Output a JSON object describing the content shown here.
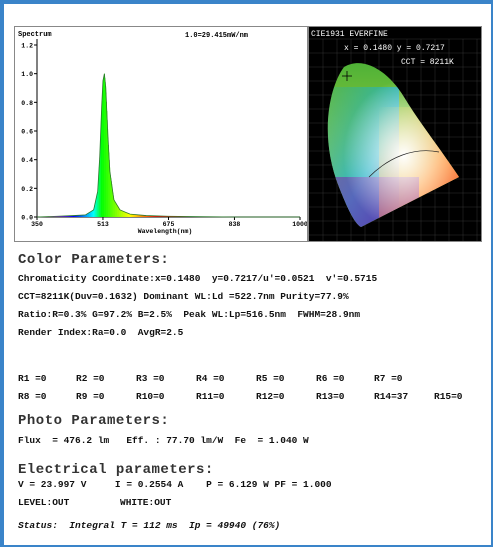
{
  "spectrum": {
    "title": "Spectrum",
    "scale_text": "1.0=29.415mW/nm",
    "xlabel": "Wavelength(nm)",
    "x_ticks": [
      "350",
      "513",
      "675",
      "838",
      "1000"
    ],
    "y_ticks": [
      "0.0",
      "0.2",
      "0.4",
      "0.6",
      "0.8",
      "1.0",
      "1.2"
    ]
  },
  "chart_data": {
    "type": "line",
    "title": "Spectrum",
    "xlabel": "Wavelength(nm)",
    "ylabel": "",
    "xlim": [
      350,
      1000
    ],
    "ylim": [
      0,
      1.2
    ],
    "peak_nm": 516.5,
    "fwhm_nm": 28.9,
    "series": [
      {
        "x": [
          350,
          400,
          440,
          470,
          490,
          500,
          505,
          510,
          513,
          516.5,
          520,
          525,
          530,
          540,
          555,
          580,
          620,
          675,
          750,
          838,
          1000
        ],
        "values": [
          0.0,
          0.005,
          0.01,
          0.015,
          0.05,
          0.18,
          0.42,
          0.78,
          0.95,
          1.0,
          0.9,
          0.58,
          0.32,
          0.12,
          0.05,
          0.02,
          0.01,
          0.005,
          0.002,
          0.0,
          0.0
        ]
      }
    ]
  },
  "cie": {
    "title": "CIE1931 EVERFINE",
    "xy_text": "x = 0.1480  y = 0.7217",
    "cct_text": "CCT = 8211K"
  },
  "color_params": {
    "title": "Color Parameters:",
    "chromaticity": "Chromaticity Coordinate:x=0.1480  y=0.7217/u'=0.0521  v'=0.5715",
    "cct": "CCT=8211K(Duv=0.1632) Dominant WL:Ld =522.7nm Purity=77.9%",
    "ratio": "Ratio:R=0.3% G=97.2% B=2.5%  Peak WL:Lp=516.5nm  FWHM=28.9nm",
    "render": "Render Index:Ra=0.0  AvgR=2.5"
  },
  "r_values": {
    "row1": [
      "R1 =0",
      "R2 =0",
      "R3 =0",
      "R4 =0",
      "R5 =0",
      "R6 =0",
      "R7 =0"
    ],
    "row2": [
      "R8 =0",
      "R9 =0",
      "R10=0",
      "R11=0",
      "R12=0",
      "R13=0",
      "R14=37",
      "R15=0"
    ]
  },
  "photo_params": {
    "title": "Photo Parameters:",
    "line": "Flux  = 476.2 lm   Eff. : 77.70 lm/W  Fe  = 1.040 W"
  },
  "electrical_params": {
    "title": "Electrical parameters:",
    "line": "V = 23.997 V     I = 0.2554 A    P = 6.129 W PF = 1.000",
    "level": "LEVEL:OUT",
    "white": "WHITE:OUT"
  },
  "status": {
    "text": "Status:  Integral T = 112 ms  Ip = 49940 (76%)"
  }
}
